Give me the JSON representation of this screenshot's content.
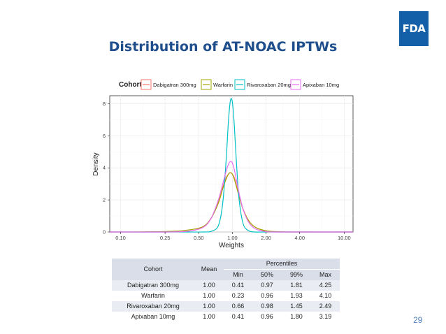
{
  "slide": {
    "title": "Distribution of AT-NOAC IPTWs",
    "logo_text": "FDA",
    "page_number": "29"
  },
  "chart_data": {
    "type": "line",
    "xlabel": "Weights",
    "ylabel": "Density",
    "x_scale": "log",
    "x_ticks": [
      "0.10",
      "0.25",
      "0.50",
      "1.00",
      "2.00",
      "4.00",
      "10.00"
    ],
    "x_tick_values": [
      0.1,
      0.25,
      0.5,
      1.0,
      2.0,
      4.0,
      10.0
    ],
    "y_ticks": [
      "0",
      "2",
      "4",
      "6",
      "8"
    ],
    "y_tick_values": [
      0,
      2,
      4,
      6,
      8
    ],
    "xlim": [
      0.08,
      12
    ],
    "ylim": [
      0,
      8.5
    ],
    "grid": true,
    "legend": {
      "title": "Cohort",
      "placement": "top"
    },
    "x": [
      0.08,
      0.25,
      0.4,
      0.55,
      0.65,
      0.75,
      0.82,
      0.88,
      0.92,
      0.96,
      1.0,
      1.04,
      1.09,
      1.15,
      1.25,
      1.4,
      1.6,
      2.0,
      2.5,
      4.0,
      12.0
    ],
    "series": [
      {
        "name": "Dabigatran 300mg",
        "color": "#f8766d",
        "values": [
          0,
          0,
          0.05,
          0.3,
          0.9,
          1.9,
          2.8,
          3.4,
          3.6,
          3.7,
          3.6,
          3.4,
          2.9,
          2.3,
          1.4,
          0.7,
          0.3,
          0.05,
          0,
          0,
          0
        ]
      },
      {
        "name": "Warfarin",
        "color": "#a3a500",
        "values": [
          0,
          0.03,
          0.12,
          0.35,
          0.9,
          1.8,
          2.7,
          3.3,
          3.6,
          3.7,
          3.6,
          3.3,
          2.8,
          2.2,
          1.4,
          0.7,
          0.3,
          0.08,
          0.02,
          0,
          0
        ]
      },
      {
        "name": "Rivaroxaban 20mg",
        "color": "#00bfc4",
        "values": [
          0,
          0,
          0,
          0,
          0.05,
          0.4,
          1.8,
          4.5,
          6.8,
          8.2,
          8.1,
          6.7,
          4.2,
          2.0,
          0.5,
          0.08,
          0,
          0,
          0,
          0,
          0
        ]
      },
      {
        "name": "Apixaban 10mg",
        "color": "#e76bf3",
        "values": [
          0,
          0,
          0.05,
          0.3,
          0.9,
          2.0,
          3.0,
          3.8,
          4.2,
          4.4,
          4.3,
          3.9,
          3.2,
          2.4,
          1.4,
          0.6,
          0.2,
          0.02,
          0,
          0,
          0
        ]
      }
    ]
  },
  "table": {
    "headers": {
      "cohort": "Cohort",
      "mean": "Mean",
      "percentiles": "Percentiles"
    },
    "sub_headers": [
      "Min",
      "50%",
      "99%",
      "Max"
    ],
    "rows": [
      [
        "Dabigatran 300mg",
        "1.00",
        "0.41",
        "0.97",
        "1.81",
        "4.25"
      ],
      [
        "Warfarin",
        "1.00",
        "0.23",
        "0.96",
        "1.93",
        "4.10"
      ],
      [
        "Rivaroxaban 20mg",
        "1.00",
        "0.66",
        "0.98",
        "1.45",
        "2.49"
      ],
      [
        "Apixaban 10mg",
        "1.00",
        "0.41",
        "0.96",
        "1.80",
        "3.19"
      ]
    ]
  }
}
